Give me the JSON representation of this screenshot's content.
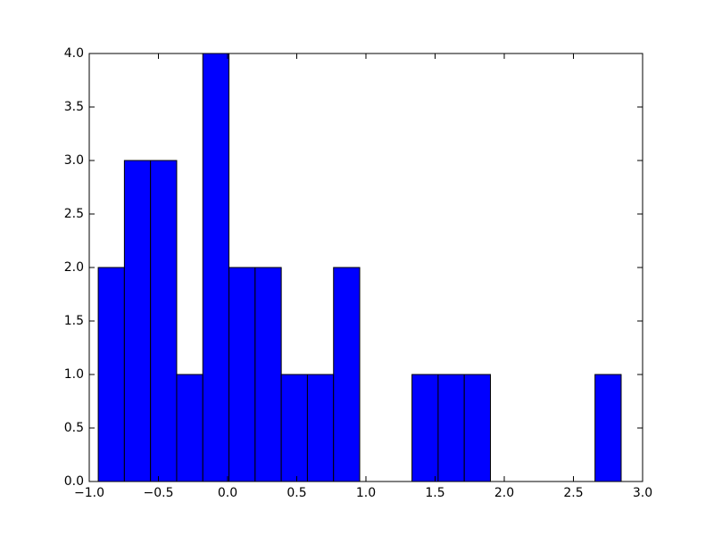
{
  "chart_data": {
    "type": "histogram",
    "bins": [
      -0.935,
      -0.746,
      -0.557,
      -0.368,
      -0.179,
      0.01,
      0.199,
      0.388,
      0.577,
      0.766,
      0.955,
      1.144,
      1.333,
      1.522,
      1.711,
      1.9,
      2.089,
      2.278,
      2.467,
      2.656,
      2.845
    ],
    "values": [
      2,
      3,
      3,
      1,
      4,
      2,
      2,
      1,
      1,
      2,
      0,
      0,
      1,
      1,
      1,
      0,
      0,
      0,
      0,
      1
    ],
    "color": "#0000ff",
    "xlim": [
      -1.0,
      3.0
    ],
    "xticks": [
      {
        "value": -1.0,
        "label": "−1.0"
      },
      {
        "value": -0.5,
        "label": "−0.5"
      },
      {
        "value": 0,
        "label": "0.0"
      },
      0.5,
      {
        "value": 1,
        "label": "1.0"
      },
      1.5,
      {
        "value": 2,
        "label": "2.0"
      },
      2.5,
      {
        "value": 3,
        "label": "3.0"
      }
    ],
    "ylim": [
      0,
      4.0
    ],
    "yticks": [
      {
        "value": 0,
        "label": "0.0"
      },
      0.5,
      {
        "value": 1,
        "label": "1.0"
      },
      1.5,
      {
        "value": 2,
        "label": "2.0"
      },
      2.5,
      {
        "value": 3,
        "label": "3.0"
      },
      3.5,
      {
        "value": 4,
        "label": "4.0"
      }
    ]
  }
}
